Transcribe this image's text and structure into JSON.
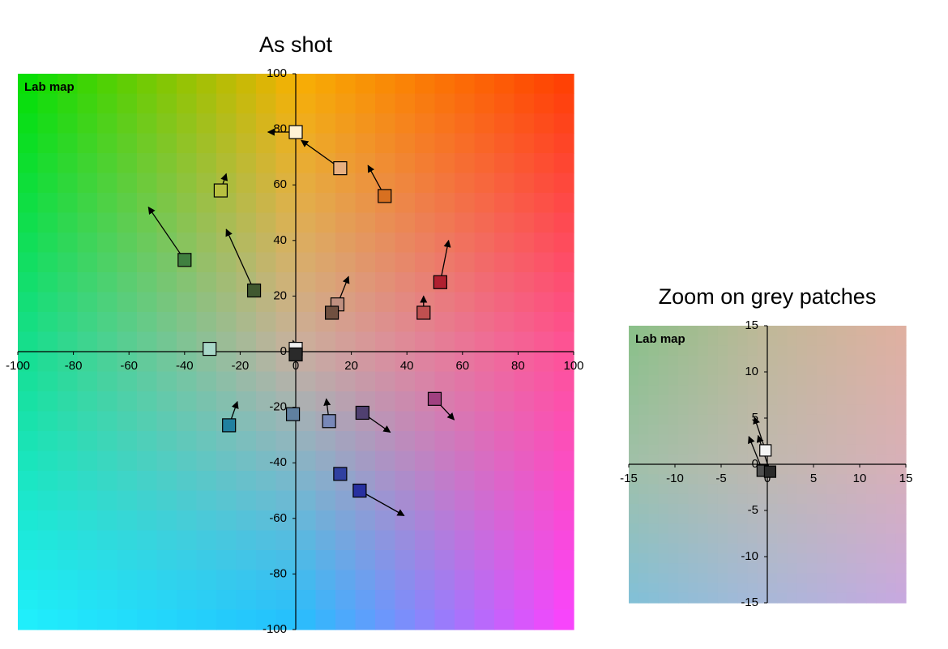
{
  "chart_data": [
    {
      "type": "scatter",
      "title": "As shot",
      "label": "Lab map",
      "xlim": [
        -100,
        100
      ],
      "ylim": [
        -100,
        100
      ],
      "xticks": [
        -100,
        -80,
        -60,
        -40,
        -20,
        0,
        20,
        40,
        60,
        80,
        100
      ],
      "yticks": [
        -100,
        -80,
        -60,
        -40,
        -20,
        0,
        20,
        40,
        60,
        80,
        100
      ],
      "x": [
        0,
        16,
        32,
        -27,
        -40,
        -15,
        52,
        46,
        15,
        13,
        -31,
        0,
        0,
        -24,
        -1,
        12,
        24,
        50,
        16,
        23
      ],
      "y": [
        79,
        66,
        56,
        58,
        33,
        22,
        25,
        14,
        17,
        14,
        1,
        1,
        -1,
        -26.5,
        -22.5,
        -25,
        -22,
        -17,
        -44,
        -50
      ],
      "target_x": [
        -10,
        2,
        26,
        -25,
        -53,
        -25,
        55,
        46,
        19,
        14,
        null,
        -1,
        null,
        -21,
        null,
        11,
        34,
        57,
        null,
        39
      ],
      "target_y": [
        79,
        76,
        67,
        64,
        52,
        44,
        40,
        20,
        27,
        16,
        null,
        4,
        null,
        -18,
        null,
        -17,
        -29,
        -24.5,
        null,
        -59
      ],
      "colors": [
        "#fff2d6",
        "#e8b080",
        "#d87020",
        "#b8c040",
        "#408040",
        "#405830",
        "#b02030",
        "#c05050",
        "#c09080",
        "#705040",
        "#a8d8c8",
        "#f0f0f0",
        "#2a2a2a",
        "#2080a0",
        "#6080a0",
        "#7888b8",
        "#504070",
        "#a04080",
        "#3040a0",
        "#2830a0"
      ]
    },
    {
      "type": "scatter",
      "title": "Zoom on grey patches",
      "label": "Lab map",
      "xlim": [
        -15,
        15
      ],
      "ylim": [
        -15,
        15
      ],
      "xticks": [
        -15,
        -10,
        -5,
        0,
        5,
        10,
        15
      ],
      "yticks": [
        -15,
        -10,
        -5,
        0,
        5,
        10,
        15
      ],
      "x": [
        -0.2,
        -0.5,
        0.3
      ],
      "y": [
        1.5,
        -0.7,
        -0.8
      ],
      "target_x": [
        -1.4,
        -2,
        -1
      ],
      "target_y": [
        5.1,
        3,
        3.1
      ],
      "colors": [
        "#f4f4f4",
        "#505050",
        "#2a2a2a"
      ]
    }
  ]
}
